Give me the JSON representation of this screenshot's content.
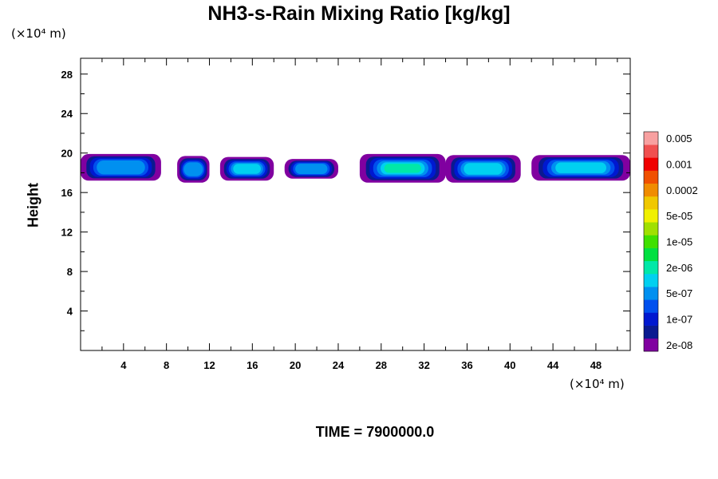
{
  "chart_data": {
    "type": "heatmap",
    "title": "NH3-s-Rain Mixing Ratio [kg/kg]",
    "ylabel": "Height",
    "x_unit": "(×10⁴ m)",
    "y_unit": "(×10⁴ m)",
    "footer": "TIME = 7900000.0",
    "xlim": [
      0,
      51.2
    ],
    "ylim": [
      0,
      29.6
    ],
    "x_ticks": [
      4,
      8,
      12,
      16,
      20,
      24,
      28,
      32,
      36,
      40,
      44,
      48
    ],
    "y_ticks": [
      4,
      8,
      12,
      16,
      20,
      24,
      28
    ],
    "colorbar": {
      "colors": [
        "#8000a0",
        "#0a1a90",
        "#0018d0",
        "#0050ee",
        "#0090f0",
        "#00d0f0",
        "#00e8a8",
        "#00e040",
        "#40e000",
        "#a0e000",
        "#f0f000",
        "#f0c800",
        "#f08c00",
        "#f05000",
        "#f00000",
        "#f05050",
        "#f8a0a0"
      ],
      "labels": [
        "2e-08",
        "1e-07",
        "5e-07",
        "2e-06",
        "1e-05",
        "5e-05",
        "0.0002",
        "0.001",
        "0.005"
      ]
    },
    "cells": [
      {
        "x": [
          0,
          7.5
        ],
        "y": [
          17.2,
          19.9
        ],
        "peak": 4
      },
      {
        "x": [
          9,
          12
        ],
        "y": [
          17.0,
          19.7
        ],
        "peak": 4
      },
      {
        "x": [
          13,
          18
        ],
        "y": [
          17.2,
          19.6
        ],
        "peak": 5
      },
      {
        "x": [
          19,
          24
        ],
        "y": [
          17.4,
          19.4
        ],
        "peak": 4
      },
      {
        "x": [
          26,
          34
        ],
        "y": [
          17.0,
          19.9
        ],
        "peak": 6
      },
      {
        "x": [
          34,
          41
        ],
        "y": [
          17.0,
          19.8
        ],
        "peak": 5
      },
      {
        "x": [
          42,
          51.2
        ],
        "y": [
          17.2,
          19.8
        ],
        "peak": 5
      }
    ]
  }
}
